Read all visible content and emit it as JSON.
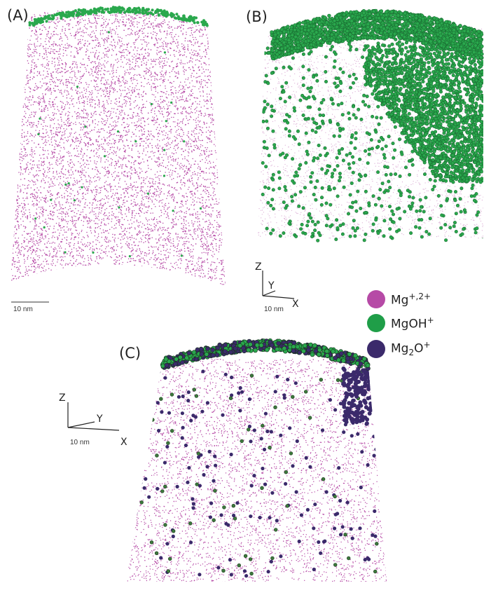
{
  "panels": {
    "a": {
      "label": "(A)",
      "scale_label": "10 nm"
    },
    "b": {
      "label": "(B)",
      "scale_label": "10 nm",
      "axes": {
        "z": "Z",
        "y": "Y",
        "x": "X"
      }
    },
    "c": {
      "label": "(C)",
      "scale_label": "10 nm",
      "axes": {
        "z": "Z",
        "y": "Y",
        "x": "X"
      }
    }
  },
  "legend": {
    "items": [
      {
        "base": "Mg",
        "sub": "",
        "sup": "+,2+",
        "after": "",
        "color": "#b64aa6"
      },
      {
        "base": "MgOH",
        "sub": "",
        "sup": "+",
        "after": "",
        "color": "#1f9e48"
      },
      {
        "base": "Mg",
        "sub": "2",
        "sup": "",
        "after": "O",
        "after_sup": "+",
        "color": "#3b2a6b"
      }
    ]
  },
  "colors": {
    "mg": "#b64aa6",
    "mgoh": "#2aa84d",
    "mg2o": "#3b2a6b",
    "mg_light": "#d9a8d2"
  }
}
